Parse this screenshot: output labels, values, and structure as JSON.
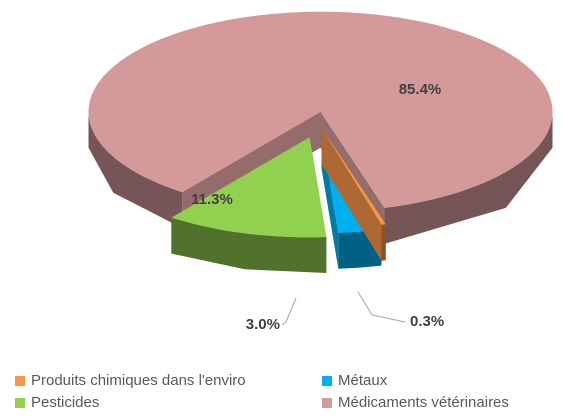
{
  "chart_data": {
    "type": "pie",
    "categories": [
      "Produits chimiques dans l'enviro",
      "Métaux",
      "Pesticides",
      "Médicaments vétérinaires"
    ],
    "values": [
      0.3,
      3.0,
      11.3,
      85.4
    ],
    "value_labels": [
      "0.3%",
      "3.0%",
      "11.3%",
      "85.4%"
    ],
    "colors": [
      "#f79646",
      "#00b0f0",
      "#92d050",
      "#d49a9a"
    ],
    "legend": "bottom"
  }
}
